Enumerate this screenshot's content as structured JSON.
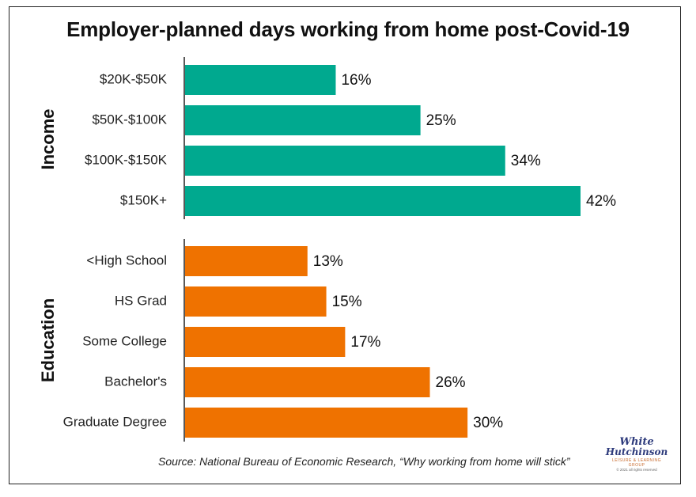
{
  "title": "Employer-planned days working from home post-Covid-19",
  "source": "Source: National Bureau of Economic Research, “Why working from home will stick”",
  "logo": {
    "line1": "White",
    "line2": "Hutchinson",
    "line3": "LEISURE & LEARNING GROUP",
    "line4": "© 2021 all rights reserved"
  },
  "colors": {
    "income": "#00a98f",
    "education": "#ef7200"
  },
  "chart_data": {
    "type": "bar",
    "orientation": "horizontal",
    "xlim": [
      0,
      42
    ],
    "groups": [
      {
        "name": "Income",
        "color": "#00a98f",
        "categories": [
          "$20K-$50K",
          "$50K-$100K",
          "$100K-$150K",
          "$150K+"
        ],
        "values": [
          16,
          25,
          34,
          42
        ],
        "labels": [
          "16%",
          "25%",
          "34%",
          "42%"
        ]
      },
      {
        "name": "Education",
        "color": "#ef7200",
        "categories": [
          "<High School",
          "HS Grad",
          "Some College",
          "Bachelor's",
          "Graduate Degree"
        ],
        "values": [
          13,
          15,
          17,
          26,
          30
        ],
        "labels": [
          "13%",
          "15%",
          "17%",
          "26%",
          "30%"
        ]
      }
    ]
  }
}
